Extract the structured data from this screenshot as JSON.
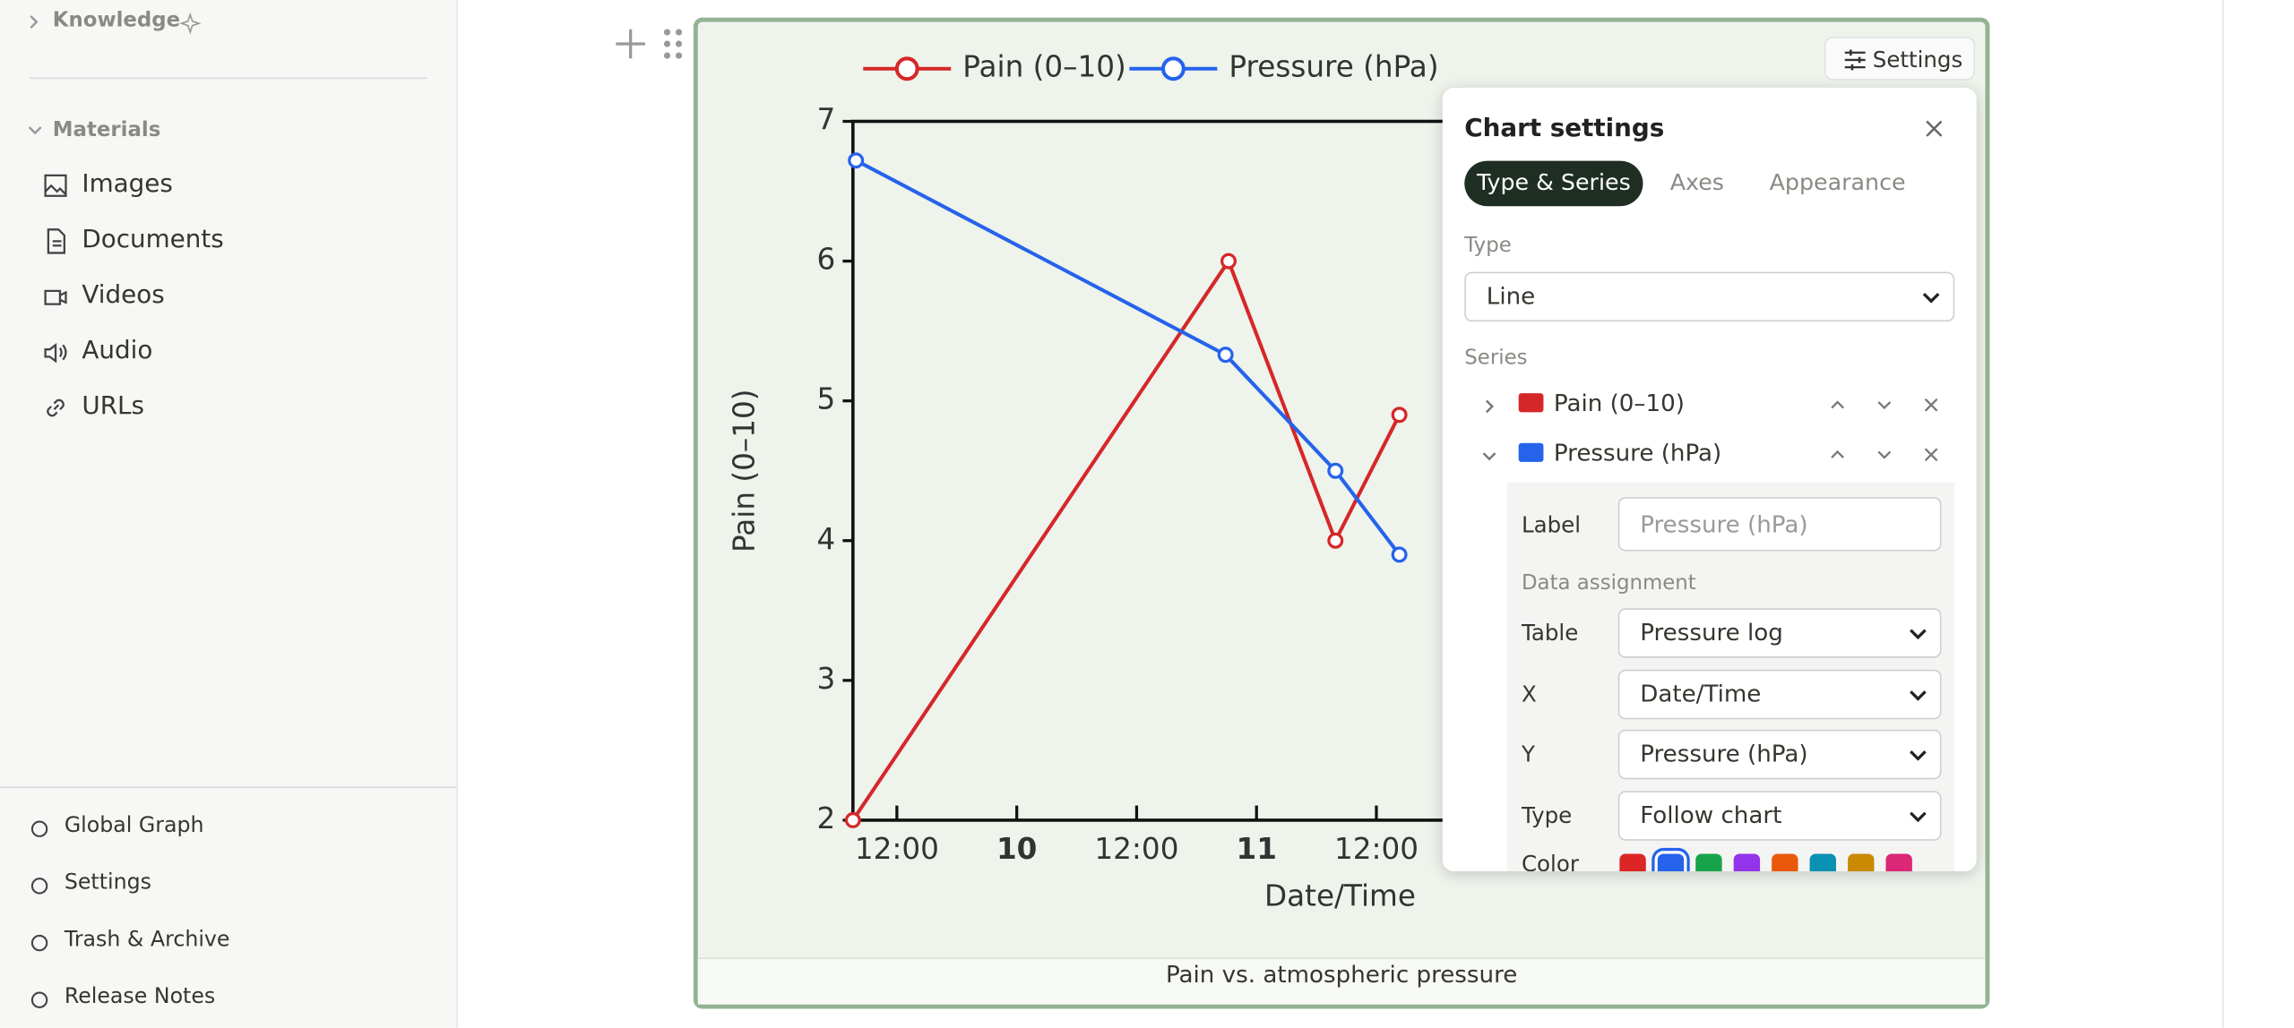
{
  "sidebar": {
    "sections": [
      {
        "title": "Knowledge"
      },
      {
        "title": "Materials",
        "items": [
          "Images",
          "Documents",
          "Videos",
          "Audio",
          "URLs"
        ]
      }
    ],
    "footer": [
      "Global Graph",
      "Settings",
      "Trash & Archive",
      "Release Notes"
    ]
  },
  "chart_data": {
    "type": "line",
    "x_label": "Date/Time",
    "y_label": "Pain (0–10)",
    "caption": "Pain vs. atmospheric pressure",
    "series": [
      {
        "name": "Pain (0–10)",
        "color": "#d62728",
        "x": [
          7.6,
          45.2,
          55.9,
          62.3
        ],
        "values": [
          2,
          6,
          4,
          4.9
        ]
      },
      {
        "name": "Pressure (hPa)",
        "color": "#2563eb",
        "x": [
          7.9,
          44.9,
          55.9,
          62.3
        ],
        "values": [
          6.72,
          5.33,
          4.5,
          3.9
        ]
      }
    ],
    "xlim": [
      7.6,
      117
    ],
    "xticks": [
      {
        "value": 12,
        "label": "12:00"
      },
      {
        "value": 24,
        "label": "10"
      },
      {
        "value": 36,
        "label": "12:00"
      },
      {
        "value": 48,
        "label": "11"
      },
      {
        "value": 60,
        "label": "12:00"
      }
    ],
    "ylim": [
      2,
      7
    ],
    "yticks": [
      2,
      3,
      4,
      5,
      6,
      7
    ]
  },
  "settings_button": "Settings",
  "settings_panel": {
    "title": "Chart settings",
    "tabs": [
      "Type & Series",
      "Axes",
      "Appearance"
    ],
    "type_label": "Type",
    "type_value": "Line",
    "series_label": "Series",
    "detail": {
      "label_label": "Label",
      "label_placeholder": "Pressure (hPa)",
      "assignment": "Data assignment",
      "fields": [
        {
          "label": "Table",
          "value": "Pressure log"
        },
        {
          "label": "X",
          "value": "Date/Time"
        },
        {
          "label": "Y",
          "value": "Pressure (hPa)"
        },
        {
          "label": "Type",
          "value": "Follow chart"
        }
      ],
      "color_label": "Color",
      "swatches": [
        "#dc2626",
        "#2563eb",
        "#16a34a",
        "#9333ea",
        "#ea580c",
        "#0891b2",
        "#ca8a04",
        "#db2777"
      ],
      "selected_swatch": 1
    }
  }
}
